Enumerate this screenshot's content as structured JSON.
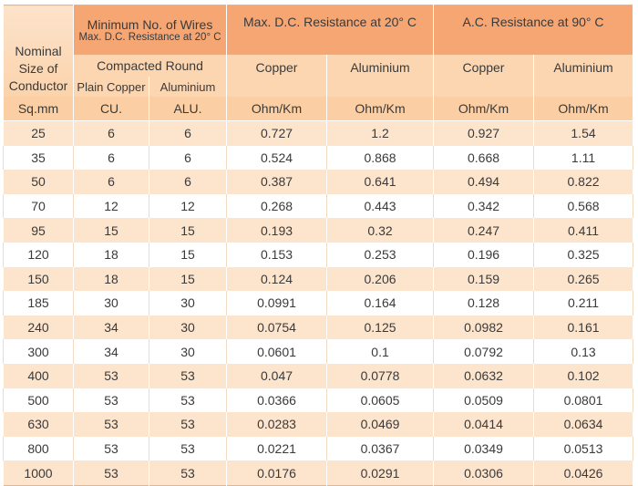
{
  "table": {
    "header": {
      "nominal": "Nominal Size of Conductor",
      "wires_title": "Minimum No. of Wires",
      "wires_sub": "Max. D.C. Resistance at 20° C",
      "dc_title": "Max. D.C. Resistance at 20° C",
      "ac_title": "A.C. Resistance at 90° C",
      "compacted_round": "Compacted Round",
      "plain_copper": "Plain Copper",
      "wires_aluminium": "Aluminium",
      "dc_copper": "Copper",
      "dc_aluminium": "Aluminium",
      "ac_copper": "Copper",
      "ac_aluminium": "Aluminium"
    },
    "units": [
      "Sq.mm",
      "CU.",
      "ALU.",
      "Ohm/Km",
      "Ohm/Km",
      "Ohm/Km",
      "Ohm/Km"
    ],
    "rows": [
      [
        "25",
        "6",
        "6",
        "0.727",
        "1.2",
        "0.927",
        "1.54"
      ],
      [
        "35",
        "6",
        "6",
        "0.524",
        "0.868",
        "0.668",
        "1.11"
      ],
      [
        "50",
        "6",
        "6",
        "0.387",
        "0.641",
        "0.494",
        "0.822"
      ],
      [
        "70",
        "12",
        "12",
        "0.268",
        "0.443",
        "0.342",
        "0.568"
      ],
      [
        "95",
        "15",
        "15",
        "0.193",
        "0.32",
        "0.247",
        "0.411"
      ],
      [
        "120",
        "18",
        "15",
        "0.153",
        "0.253",
        "0.196",
        "0.325"
      ],
      [
        "150",
        "18",
        "15",
        "0.124",
        "0.206",
        "0.159",
        "0.265"
      ],
      [
        "185",
        "30",
        "30",
        "0.0991",
        "0.164",
        "0.128",
        "0.211"
      ],
      [
        "240",
        "34",
        "30",
        "0.0754",
        "0.125",
        "0.0982",
        "0.161"
      ],
      [
        "300",
        "34",
        "30",
        "0.0601",
        "0.1",
        "0.0792",
        "0.13"
      ],
      [
        "400",
        "53",
        "53",
        "0.047",
        "0.0778",
        "0.0632",
        "0.102"
      ],
      [
        "500",
        "53",
        "53",
        "0.0366",
        "0.0605",
        "0.0509",
        "0.0801"
      ],
      [
        "630",
        "53",
        "53",
        "0.0283",
        "0.0469",
        "0.0414",
        "0.0634"
      ],
      [
        "800",
        "53",
        "53",
        "0.0221",
        "0.0367",
        "0.0349",
        "0.0513"
      ],
      [
        "1000",
        "53",
        "53",
        "0.0176",
        "0.0291",
        "0.0306",
        "0.0426"
      ]
    ]
  }
}
